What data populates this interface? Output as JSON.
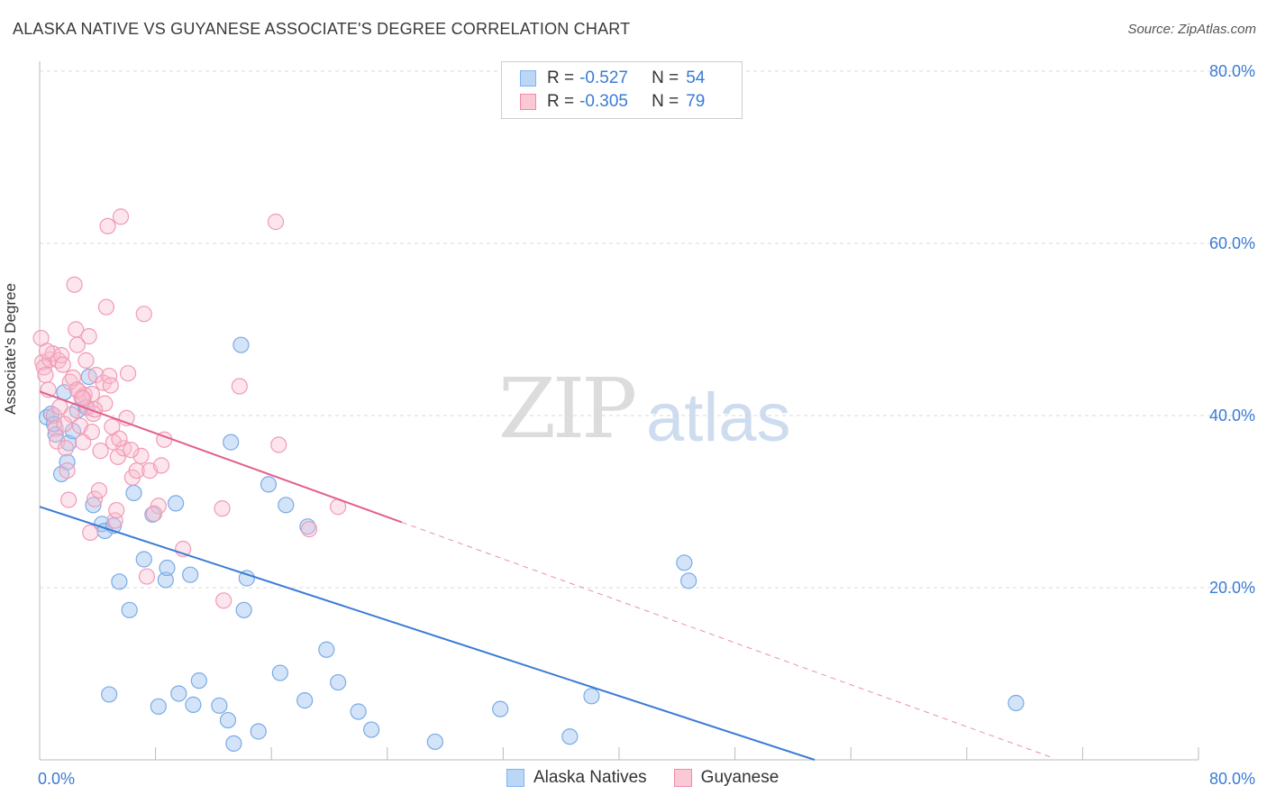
{
  "header": {
    "title": "ALASKA NATIVE VS GUYANESE ASSOCIATE'S DEGREE CORRELATION CHART",
    "source": "Source: ZipAtlas.com"
  },
  "watermark": {
    "zip": "ZIP",
    "atlas": "atlas"
  },
  "legend": {
    "rows": [
      {
        "r_label": "R =",
        "r_value": "-0.527",
        "n_label": "N =",
        "n_value": "54",
        "color": "#7fb2ee",
        "fill": "#bcd6f7"
      },
      {
        "r_label": "R =",
        "r_value": "-0.305",
        "n_label": "N =",
        "n_value": "79",
        "color": "#f08aa8",
        "fill": "#fbc8d6"
      }
    ]
  },
  "bottom_legend": {
    "a": "Alaska Natives",
    "b": "Guyanese"
  },
  "chart_data": {
    "type": "scatter",
    "title": "ALASKA NATIVE VS GUYANESE ASSOCIATE'S DEGREE CORRELATION CHART",
    "xlabel": "",
    "ylabel": "Associate's Degree",
    "xlim": [
      0,
      80
    ],
    "ylim": [
      0,
      80
    ],
    "x_tick_labels": [
      "0.0%",
      "80.0%"
    ],
    "y_ticks": [
      {
        "value": 20,
        "label": "20.0%"
      },
      {
        "value": 40,
        "label": "40.0%"
      },
      {
        "value": 60,
        "label": "60.0%"
      },
      {
        "value": 80,
        "label": "80.0%"
      }
    ],
    "series": [
      {
        "name": "Alaska Natives",
        "color": "#3a7bd5",
        "fill": "rgba(160,196,240,0.45)",
        "stroke": "#7aaae6",
        "trend": {
          "x0": 0,
          "y0": 29.4,
          "x1": 53.5,
          "y1": 0
        },
        "points": [
          [
            0.5,
            39.8
          ],
          [
            0.8,
            40.2
          ],
          [
            1.1,
            37.8
          ],
          [
            1.5,
            33.2
          ],
          [
            1.7,
            42.7
          ],
          [
            1.9,
            34.6
          ],
          [
            2.0,
            36.8
          ],
          [
            2.3,
            38.2
          ],
          [
            3.4,
            44.5
          ],
          [
            3.7,
            29.6
          ],
          [
            4.3,
            27.4
          ],
          [
            4.5,
            26.6
          ],
          [
            5.1,
            27.2
          ],
          [
            5.5,
            20.7
          ],
          [
            6.2,
            17.4
          ],
          [
            6.5,
            31.0
          ],
          [
            7.2,
            23.3
          ],
          [
            7.8,
            28.5
          ],
          [
            8.7,
            20.9
          ],
          [
            8.8,
            22.3
          ],
          [
            9.4,
            29.8
          ],
          [
            10.4,
            21.5
          ],
          [
            11.0,
            9.2
          ],
          [
            13.2,
            36.9
          ],
          [
            13.9,
            48.2
          ],
          [
            14.1,
            17.4
          ],
          [
            14.3,
            21.1
          ],
          [
            15.8,
            32.0
          ],
          [
            16.6,
            10.1
          ],
          [
            17.0,
            29.6
          ],
          [
            18.3,
            6.9
          ],
          [
            18.5,
            27.1
          ],
          [
            19.8,
            12.8
          ],
          [
            20.6,
            9.0
          ],
          [
            22.0,
            5.6
          ],
          [
            22.9,
            3.5
          ],
          [
            27.3,
            2.1
          ],
          [
            31.8,
            5.9
          ],
          [
            36.6,
            2.7
          ],
          [
            38.1,
            7.4
          ],
          [
            44.5,
            22.9
          ],
          [
            44.8,
            20.8
          ],
          [
            67.4,
            6.6
          ],
          [
            4.8,
            7.6
          ],
          [
            8.2,
            6.2
          ],
          [
            9.6,
            7.7
          ],
          [
            10.6,
            6.4
          ],
          [
            12.4,
            6.3
          ],
          [
            13.0,
            4.6
          ],
          [
            13.4,
            1.9
          ],
          [
            15.1,
            3.3
          ],
          [
            1.0,
            39.0
          ],
          [
            2.6,
            40.6
          ],
          [
            3.2,
            41.0
          ]
        ]
      },
      {
        "name": "Guyanese",
        "color": "#e35f8a",
        "fill": "rgba(248,190,208,0.40)",
        "stroke": "#f29ab5",
        "trend": {
          "x0": 0,
          "y0": 42.8,
          "x1": 25,
          "y1": 27.6
        },
        "trend_dash": {
          "x0": 25,
          "y0": 27.6,
          "x1": 70,
          "y1": 0.2
        },
        "points": [
          [
            0.1,
            49.0
          ],
          [
            0.2,
            46.2
          ],
          [
            0.3,
            45.6
          ],
          [
            0.4,
            44.7
          ],
          [
            0.6,
            43.0
          ],
          [
            0.7,
            46.5
          ],
          [
            0.9,
            47.2
          ],
          [
            1.0,
            40.0
          ],
          [
            1.1,
            38.5
          ],
          [
            1.2,
            37.0
          ],
          [
            1.3,
            46.4
          ],
          [
            1.5,
            47.0
          ],
          [
            1.6,
            45.9
          ],
          [
            1.8,
            36.2
          ],
          [
            1.9,
            33.6
          ],
          [
            2.0,
            30.2
          ],
          [
            2.2,
            40.1
          ],
          [
            2.4,
            55.2
          ],
          [
            2.5,
            50.0
          ],
          [
            2.6,
            48.2
          ],
          [
            2.7,
            42.8
          ],
          [
            2.8,
            38.8
          ],
          [
            3.0,
            36.9
          ],
          [
            3.1,
            42.4
          ],
          [
            3.2,
            46.4
          ],
          [
            3.3,
            40.9
          ],
          [
            3.4,
            49.2
          ],
          [
            3.5,
            26.4
          ],
          [
            3.6,
            42.5
          ],
          [
            3.7,
            40.2
          ],
          [
            3.8,
            30.3
          ],
          [
            3.9,
            44.7
          ],
          [
            4.1,
            31.3
          ],
          [
            4.2,
            35.9
          ],
          [
            4.4,
            43.8
          ],
          [
            4.5,
            41.4
          ],
          [
            4.6,
            52.6
          ],
          [
            4.8,
            44.6
          ],
          [
            5.0,
            38.7
          ],
          [
            5.1,
            36.9
          ],
          [
            5.2,
            27.8
          ],
          [
            5.3,
            29.0
          ],
          [
            5.4,
            35.2
          ],
          [
            5.6,
            63.1
          ],
          [
            5.8,
            36.2
          ],
          [
            6.0,
            39.7
          ],
          [
            6.1,
            44.9
          ],
          [
            6.4,
            32.8
          ],
          [
            6.7,
            33.6
          ],
          [
            7.0,
            35.3
          ],
          [
            7.2,
            51.8
          ],
          [
            7.4,
            21.3
          ],
          [
            7.6,
            33.6
          ],
          [
            8.2,
            29.5
          ],
          [
            8.4,
            34.2
          ],
          [
            8.6,
            37.2
          ],
          [
            9.9,
            24.5
          ],
          [
            12.6,
            29.2
          ],
          [
            12.7,
            18.5
          ],
          [
            13.8,
            43.4
          ],
          [
            16.3,
            62.5
          ],
          [
            16.5,
            36.6
          ],
          [
            18.6,
            26.8
          ],
          [
            20.6,
            29.4
          ],
          [
            0.5,
            47.5
          ],
          [
            1.4,
            41.0
          ],
          [
            2.1,
            43.9
          ],
          [
            2.3,
            44.4
          ],
          [
            2.9,
            42.1
          ],
          [
            3.6,
            38.1
          ],
          [
            4.7,
            62.0
          ],
          [
            5.5,
            37.3
          ],
          [
            1.7,
            39.0
          ],
          [
            2.6,
            43.0
          ],
          [
            3.0,
            42.0
          ],
          [
            3.8,
            40.7
          ],
          [
            4.9,
            43.5
          ],
          [
            6.3,
            36.0
          ],
          [
            7.9,
            28.6
          ]
        ]
      }
    ]
  }
}
